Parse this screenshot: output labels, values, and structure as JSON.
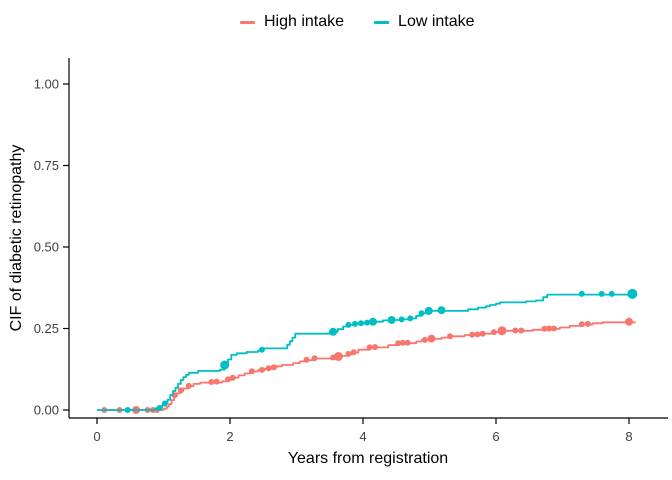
{
  "figure": {
    "background": "#FFFFFF"
  },
  "chart_data": {
    "type": "line",
    "subtype": "cumulative-incidence-step-curves",
    "title": "",
    "xlabel": "Years from registration",
    "ylabel": "CIF of diabetic retinopathy",
    "xlim": [
      -0.42,
      8.55
    ],
    "ylim": [
      -0.025,
      1.08
    ],
    "xticks": [
      0,
      2,
      4,
      6,
      8
    ],
    "xtick_labels": [
      "0",
      "2",
      "4",
      "6",
      "8"
    ],
    "yticks": [
      0,
      0.25,
      0.5,
      0.75,
      1
    ],
    "ytick_labels": [
      "0.00",
      "0.25",
      "0.50",
      "0.75",
      "1.00"
    ],
    "grid": false,
    "legend_position": "top-center",
    "axis_color": "#000000",
    "tick_label_color": "#404040",
    "series": [
      {
        "name": "High intake",
        "color": "#F8766D",
        "points": [
          [
            0,
            0
          ],
          [
            1.0,
            0.004
          ],
          [
            1.05,
            0.01
          ],
          [
            1.08,
            0.018
          ],
          [
            1.12,
            0.03
          ],
          [
            1.16,
            0.042
          ],
          [
            1.2,
            0.051
          ],
          [
            1.25,
            0.059
          ],
          [
            1.3,
            0.066
          ],
          [
            1.37,
            0.073
          ],
          [
            1.45,
            0.08
          ],
          [
            1.55,
            0.084
          ],
          [
            1.88,
            0.088
          ],
          [
            1.95,
            0.093
          ],
          [
            2.05,
            0.099
          ],
          [
            2.13,
            0.106
          ],
          [
            2.22,
            0.112
          ],
          [
            2.3,
            0.118
          ],
          [
            2.42,
            0.122
          ],
          [
            2.52,
            0.126
          ],
          [
            2.62,
            0.13
          ],
          [
            2.7,
            0.134
          ],
          [
            2.78,
            0.138
          ],
          [
            2.95,
            0.144
          ],
          [
            3.05,
            0.149
          ],
          [
            3.12,
            0.153
          ],
          [
            3.25,
            0.158
          ],
          [
            3.6,
            0.162
          ],
          [
            3.68,
            0.166
          ],
          [
            3.76,
            0.171
          ],
          [
            3.84,
            0.176
          ],
          [
            3.93,
            0.185
          ],
          [
            4.1,
            0.192
          ],
          [
            4.38,
            0.199
          ],
          [
            4.53,
            0.205
          ],
          [
            4.8,
            0.21
          ],
          [
            4.88,
            0.214
          ],
          [
            5.0,
            0.218
          ],
          [
            5.18,
            0.222
          ],
          [
            5.31,
            0.226
          ],
          [
            5.53,
            0.23
          ],
          [
            5.76,
            0.234
          ],
          [
            5.96,
            0.239
          ],
          [
            6.07,
            0.243
          ],
          [
            6.55,
            0.246
          ],
          [
            6.71,
            0.249
          ],
          [
            6.96,
            0.253
          ],
          [
            7.11,
            0.258
          ],
          [
            7.27,
            0.262
          ],
          [
            7.45,
            0.266
          ],
          [
            7.6,
            0.269
          ],
          [
            8.09,
            0.271
          ]
        ],
        "censor_marks": [
          [
            0.11,
            0,
            3
          ],
          [
            0.34,
            0,
            3
          ],
          [
            0.59,
            0,
            4
          ],
          [
            0.76,
            0,
            3
          ],
          [
            0.84,
            0,
            3
          ],
          [
            0.9,
            0,
            3
          ],
          [
            1.17,
            0.045,
            3
          ],
          [
            1.26,
            0.06,
            3
          ],
          [
            1.38,
            0.074,
            3
          ],
          [
            1.72,
            0.086,
            3
          ],
          [
            1.8,
            0.087,
            3
          ],
          [
            1.97,
            0.094,
            3
          ],
          [
            2.04,
            0.099,
            3
          ],
          [
            2.33,
            0.119,
            3
          ],
          [
            2.48,
            0.123,
            3
          ],
          [
            2.58,
            0.128,
            3
          ],
          [
            2.66,
            0.131,
            3
          ],
          [
            3.15,
            0.154,
            3
          ],
          [
            3.27,
            0.159,
            3
          ],
          [
            3.55,
            0.161,
            3
          ],
          [
            3.63,
            0.164,
            4.5
          ],
          [
            3.78,
            0.172,
            3
          ],
          [
            3.86,
            0.177,
            3
          ],
          [
            4.1,
            0.192,
            3
          ],
          [
            4.18,
            0.193,
            3
          ],
          [
            4.53,
            0.205,
            3
          ],
          [
            4.6,
            0.206,
            3
          ],
          [
            4.67,
            0.206,
            3
          ],
          [
            4.93,
            0.215,
            3
          ],
          [
            5.03,
            0.219,
            4
          ],
          [
            5.31,
            0.226,
            3
          ],
          [
            5.64,
            0.231,
            3
          ],
          [
            5.72,
            0.232,
            3
          ],
          [
            5.8,
            0.234,
            3
          ],
          [
            5.97,
            0.239,
            3
          ],
          [
            6.09,
            0.243,
            4.5
          ],
          [
            6.29,
            0.244,
            3
          ],
          [
            6.38,
            0.244,
            3
          ],
          [
            6.73,
            0.249,
            3
          ],
          [
            6.8,
            0.25,
            3
          ],
          [
            6.87,
            0.25,
            3
          ],
          [
            7.29,
            0.263,
            3
          ],
          [
            7.38,
            0.264,
            3
          ],
          [
            8.0,
            0.271,
            4
          ]
        ]
      },
      {
        "name": "Low intake",
        "color": "#00BFC4",
        "points": [
          [
            0,
            0
          ],
          [
            0.88,
            0.004
          ],
          [
            0.93,
            0.008
          ],
          [
            0.98,
            0.014
          ],
          [
            1.03,
            0.022
          ],
          [
            1.06,
            0.031
          ],
          [
            1.1,
            0.046
          ],
          [
            1.14,
            0.058
          ],
          [
            1.18,
            0.068
          ],
          [
            1.22,
            0.08
          ],
          [
            1.26,
            0.092
          ],
          [
            1.3,
            0.101
          ],
          [
            1.34,
            0.108
          ],
          [
            1.38,
            0.114
          ],
          [
            1.52,
            0.12
          ],
          [
            1.85,
            0.124
          ],
          [
            1.92,
            0.138
          ],
          [
            1.97,
            0.155
          ],
          [
            2.02,
            0.169
          ],
          [
            2.1,
            0.174
          ],
          [
            2.25,
            0.178
          ],
          [
            2.42,
            0.182
          ],
          [
            2.5,
            0.189
          ],
          [
            2.86,
            0.2
          ],
          [
            2.9,
            0.211
          ],
          [
            2.94,
            0.222
          ],
          [
            2.98,
            0.234
          ],
          [
            3.5,
            0.24
          ],
          [
            3.62,
            0.248
          ],
          [
            3.7,
            0.256
          ],
          [
            3.78,
            0.261
          ],
          [
            3.88,
            0.264
          ],
          [
            3.97,
            0.266
          ],
          [
            4.06,
            0.268
          ],
          [
            4.15,
            0.271
          ],
          [
            4.3,
            0.275
          ],
          [
            4.43,
            0.276
          ],
          [
            4.58,
            0.278
          ],
          [
            4.71,
            0.281
          ],
          [
            4.8,
            0.289
          ],
          [
            4.88,
            0.297
          ],
          [
            4.98,
            0.304
          ],
          [
            5.58,
            0.309
          ],
          [
            5.73,
            0.314
          ],
          [
            5.85,
            0.318
          ],
          [
            5.91,
            0.322
          ],
          [
            6.0,
            0.326
          ],
          [
            6.06,
            0.33
          ],
          [
            6.45,
            0.333
          ],
          [
            6.6,
            0.336
          ],
          [
            6.71,
            0.346
          ],
          [
            6.77,
            0.354
          ],
          [
            8.1,
            0.356
          ]
        ],
        "censor_marks": [
          [
            0.46,
            0,
            3
          ],
          [
            0.94,
            0.006,
            3
          ],
          [
            1.02,
            0.02,
            3
          ],
          [
            1.92,
            0.138,
            4.5
          ],
          [
            2.48,
            0.185,
            3
          ],
          [
            3.55,
            0.24,
            4
          ],
          [
            3.78,
            0.261,
            3
          ],
          [
            3.88,
            0.264,
            3
          ],
          [
            3.97,
            0.266,
            3
          ],
          [
            4.06,
            0.268,
            3
          ],
          [
            4.15,
            0.271,
            4
          ],
          [
            4.43,
            0.276,
            4
          ],
          [
            4.58,
            0.278,
            3
          ],
          [
            4.71,
            0.281,
            3
          ],
          [
            4.88,
            0.297,
            3
          ],
          [
            4.99,
            0.304,
            4
          ],
          [
            5.18,
            0.306,
            4
          ],
          [
            7.29,
            0.356,
            3
          ],
          [
            7.59,
            0.356,
            3
          ],
          [
            7.74,
            0.356,
            3
          ],
          [
            8.05,
            0.356,
            5
          ]
        ]
      }
    ]
  }
}
